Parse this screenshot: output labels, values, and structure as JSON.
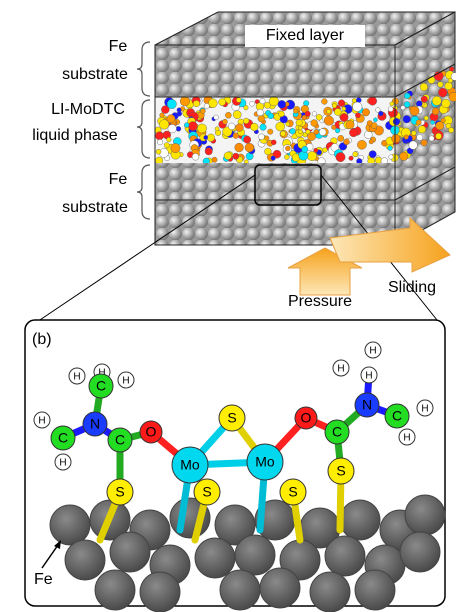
{
  "panel_a": {
    "fe_top": [
      "Fe",
      "substrate"
    ],
    "liquid": [
      "LI-MoDTC",
      "liquid phase"
    ],
    "fe_bottom": [
      "Fe",
      "substrate"
    ],
    "fixed_layer": "Fixed layer",
    "pressure": "Pressure",
    "sliding": "Sliding"
  },
  "panel_b": {
    "label": "(b)",
    "fe": "Fe",
    "atoms": [
      "H",
      "H",
      "H",
      "C",
      "N",
      "H",
      "C",
      "H",
      "C",
      "O",
      "S",
      "Mo",
      "S",
      "S",
      "Mo",
      "S",
      "O",
      "C",
      "S",
      "N",
      "C",
      "H",
      "H",
      "H",
      "H",
      "H"
    ]
  }
}
